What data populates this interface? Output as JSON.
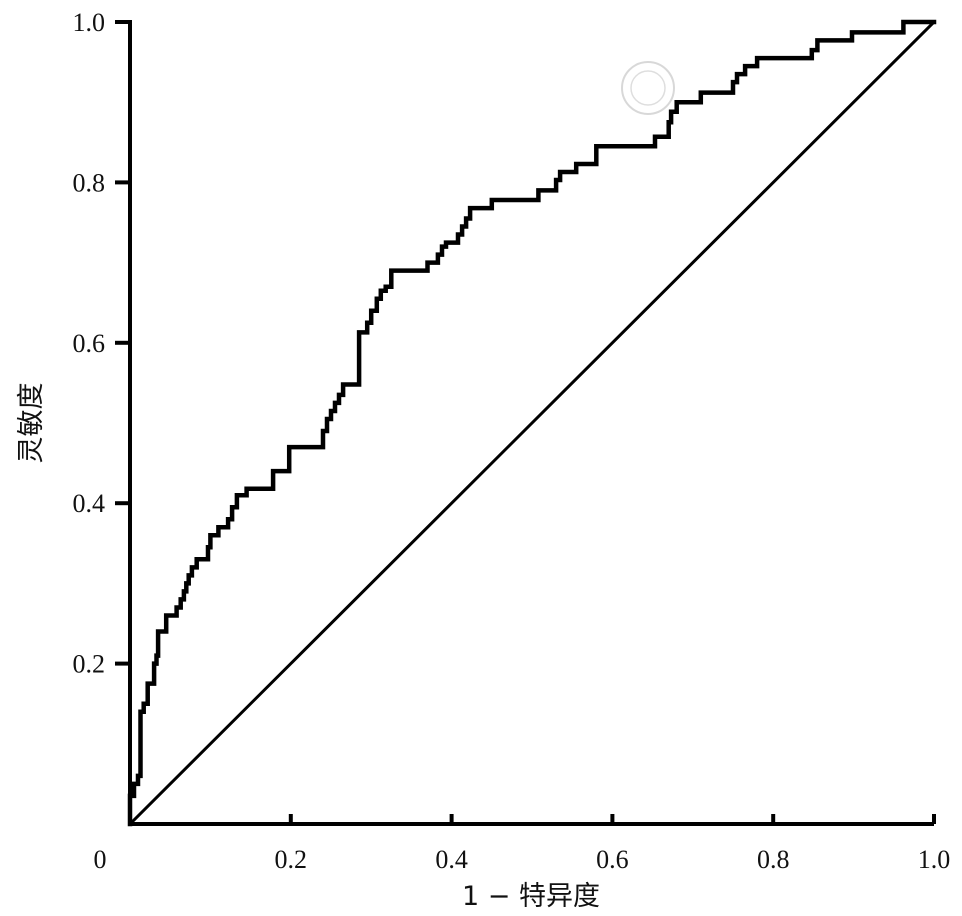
{
  "chart_data": {
    "type": "line",
    "title": "",
    "xlabel": "1 − 特异度",
    "ylabel": "灵敏度",
    "xlim": [
      0,
      1
    ],
    "ylim": [
      0,
      1
    ],
    "x_ticks": [
      "0",
      "0.2",
      "0.4",
      "0.6",
      "0.8",
      "1.0"
    ],
    "y_ticks": [
      "0.2",
      "0.4",
      "0.6",
      "0.8",
      "1.0"
    ],
    "grid": false,
    "legend": "none",
    "colors": {
      "line": "#000000",
      "watermark": "#c9c9c9"
    },
    "watermark": "",
    "series": [
      {
        "style": "step",
        "points": [
          [
            0,
            0
          ],
          [
            0,
            0.035
          ],
          [
            0.005,
            0.035
          ],
          [
            0.005,
            0.05
          ],
          [
            0.01,
            0.05
          ],
          [
            0.01,
            0.06
          ],
          [
            0.013,
            0.06
          ],
          [
            0.013,
            0.14
          ],
          [
            0.017,
            0.14
          ],
          [
            0.017,
            0.15
          ],
          [
            0.022,
            0.15
          ],
          [
            0.022,
            0.175
          ],
          [
            0.03,
            0.175
          ],
          [
            0.03,
            0.2
          ],
          [
            0.033,
            0.2
          ],
          [
            0.033,
            0.21
          ],
          [
            0.035,
            0.21
          ],
          [
            0.035,
            0.24
          ],
          [
            0.045,
            0.24
          ],
          [
            0.045,
            0.26
          ],
          [
            0.058,
            0.26
          ],
          [
            0.058,
            0.27
          ],
          [
            0.063,
            0.27
          ],
          [
            0.063,
            0.28
          ],
          [
            0.067,
            0.28
          ],
          [
            0.067,
            0.29
          ],
          [
            0.07,
            0.29
          ],
          [
            0.07,
            0.3
          ],
          [
            0.073,
            0.3
          ],
          [
            0.073,
            0.31
          ],
          [
            0.077,
            0.31
          ],
          [
            0.077,
            0.32
          ],
          [
            0.083,
            0.32
          ],
          [
            0.083,
            0.33
          ],
          [
            0.097,
            0.33
          ],
          [
            0.097,
            0.345
          ],
          [
            0.1,
            0.345
          ],
          [
            0.1,
            0.36
          ],
          [
            0.11,
            0.36
          ],
          [
            0.11,
            0.37
          ],
          [
            0.122,
            0.37
          ],
          [
            0.122,
            0.38
          ],
          [
            0.127,
            0.38
          ],
          [
            0.127,
            0.395
          ],
          [
            0.133,
            0.395
          ],
          [
            0.133,
            0.41
          ],
          [
            0.145,
            0.41
          ],
          [
            0.145,
            0.418
          ],
          [
            0.178,
            0.418
          ],
          [
            0.178,
            0.44
          ],
          [
            0.198,
            0.44
          ],
          [
            0.198,
            0.47
          ],
          [
            0.24,
            0.47
          ],
          [
            0.24,
            0.49
          ],
          [
            0.245,
            0.49
          ],
          [
            0.245,
            0.505
          ],
          [
            0.25,
            0.505
          ],
          [
            0.25,
            0.515
          ],
          [
            0.255,
            0.515
          ],
          [
            0.255,
            0.525
          ],
          [
            0.26,
            0.525
          ],
          [
            0.26,
            0.535
          ],
          [
            0.265,
            0.535
          ],
          [
            0.265,
            0.548
          ],
          [
            0.285,
            0.548
          ],
          [
            0.285,
            0.613
          ],
          [
            0.295,
            0.613
          ],
          [
            0.295,
            0.625
          ],
          [
            0.3,
            0.625
          ],
          [
            0.3,
            0.64
          ],
          [
            0.307,
            0.64
          ],
          [
            0.307,
            0.655
          ],
          [
            0.312,
            0.655
          ],
          [
            0.312,
            0.665
          ],
          [
            0.318,
            0.665
          ],
          [
            0.318,
            0.67
          ],
          [
            0.325,
            0.67
          ],
          [
            0.325,
            0.69
          ],
          [
            0.37,
            0.69
          ],
          [
            0.37,
            0.7
          ],
          [
            0.383,
            0.7
          ],
          [
            0.383,
            0.71
          ],
          [
            0.388,
            0.71
          ],
          [
            0.388,
            0.72
          ],
          [
            0.393,
            0.72
          ],
          [
            0.393,
            0.725
          ],
          [
            0.408,
            0.725
          ],
          [
            0.408,
            0.735
          ],
          [
            0.413,
            0.735
          ],
          [
            0.413,
            0.745
          ],
          [
            0.418,
            0.745
          ],
          [
            0.418,
            0.755
          ],
          [
            0.423,
            0.755
          ],
          [
            0.423,
            0.768
          ],
          [
            0.45,
            0.768
          ],
          [
            0.45,
            0.778
          ],
          [
            0.508,
            0.778
          ],
          [
            0.508,
            0.79
          ],
          [
            0.53,
            0.79
          ],
          [
            0.53,
            0.803
          ],
          [
            0.535,
            0.803
          ],
          [
            0.535,
            0.813
          ],
          [
            0.555,
            0.813
          ],
          [
            0.555,
            0.823
          ],
          [
            0.58,
            0.823
          ],
          [
            0.58,
            0.845
          ],
          [
            0.653,
            0.845
          ],
          [
            0.653,
            0.857
          ],
          [
            0.67,
            0.857
          ],
          [
            0.67,
            0.875
          ],
          [
            0.673,
            0.875
          ],
          [
            0.673,
            0.888
          ],
          [
            0.68,
            0.888
          ],
          [
            0.68,
            0.9
          ],
          [
            0.71,
            0.9
          ],
          [
            0.71,
            0.912
          ],
          [
            0.75,
            0.912
          ],
          [
            0.75,
            0.925
          ],
          [
            0.755,
            0.925
          ],
          [
            0.755,
            0.935
          ],
          [
            0.765,
            0.935
          ],
          [
            0.765,
            0.945
          ],
          [
            0.78,
            0.945
          ],
          [
            0.78,
            0.955
          ],
          [
            0.848,
            0.955
          ],
          [
            0.848,
            0.965
          ],
          [
            0.855,
            0.965
          ],
          [
            0.855,
            0.977
          ],
          [
            0.898,
            0.977
          ],
          [
            0.898,
            0.987
          ],
          [
            0.962,
            0.987
          ],
          [
            0.962,
            1.0
          ],
          [
            1.0,
            1.0
          ]
        ]
      },
      {
        "style": "diagonal",
        "points": [
          [
            0,
            0
          ],
          [
            1,
            1
          ]
        ]
      }
    ]
  }
}
